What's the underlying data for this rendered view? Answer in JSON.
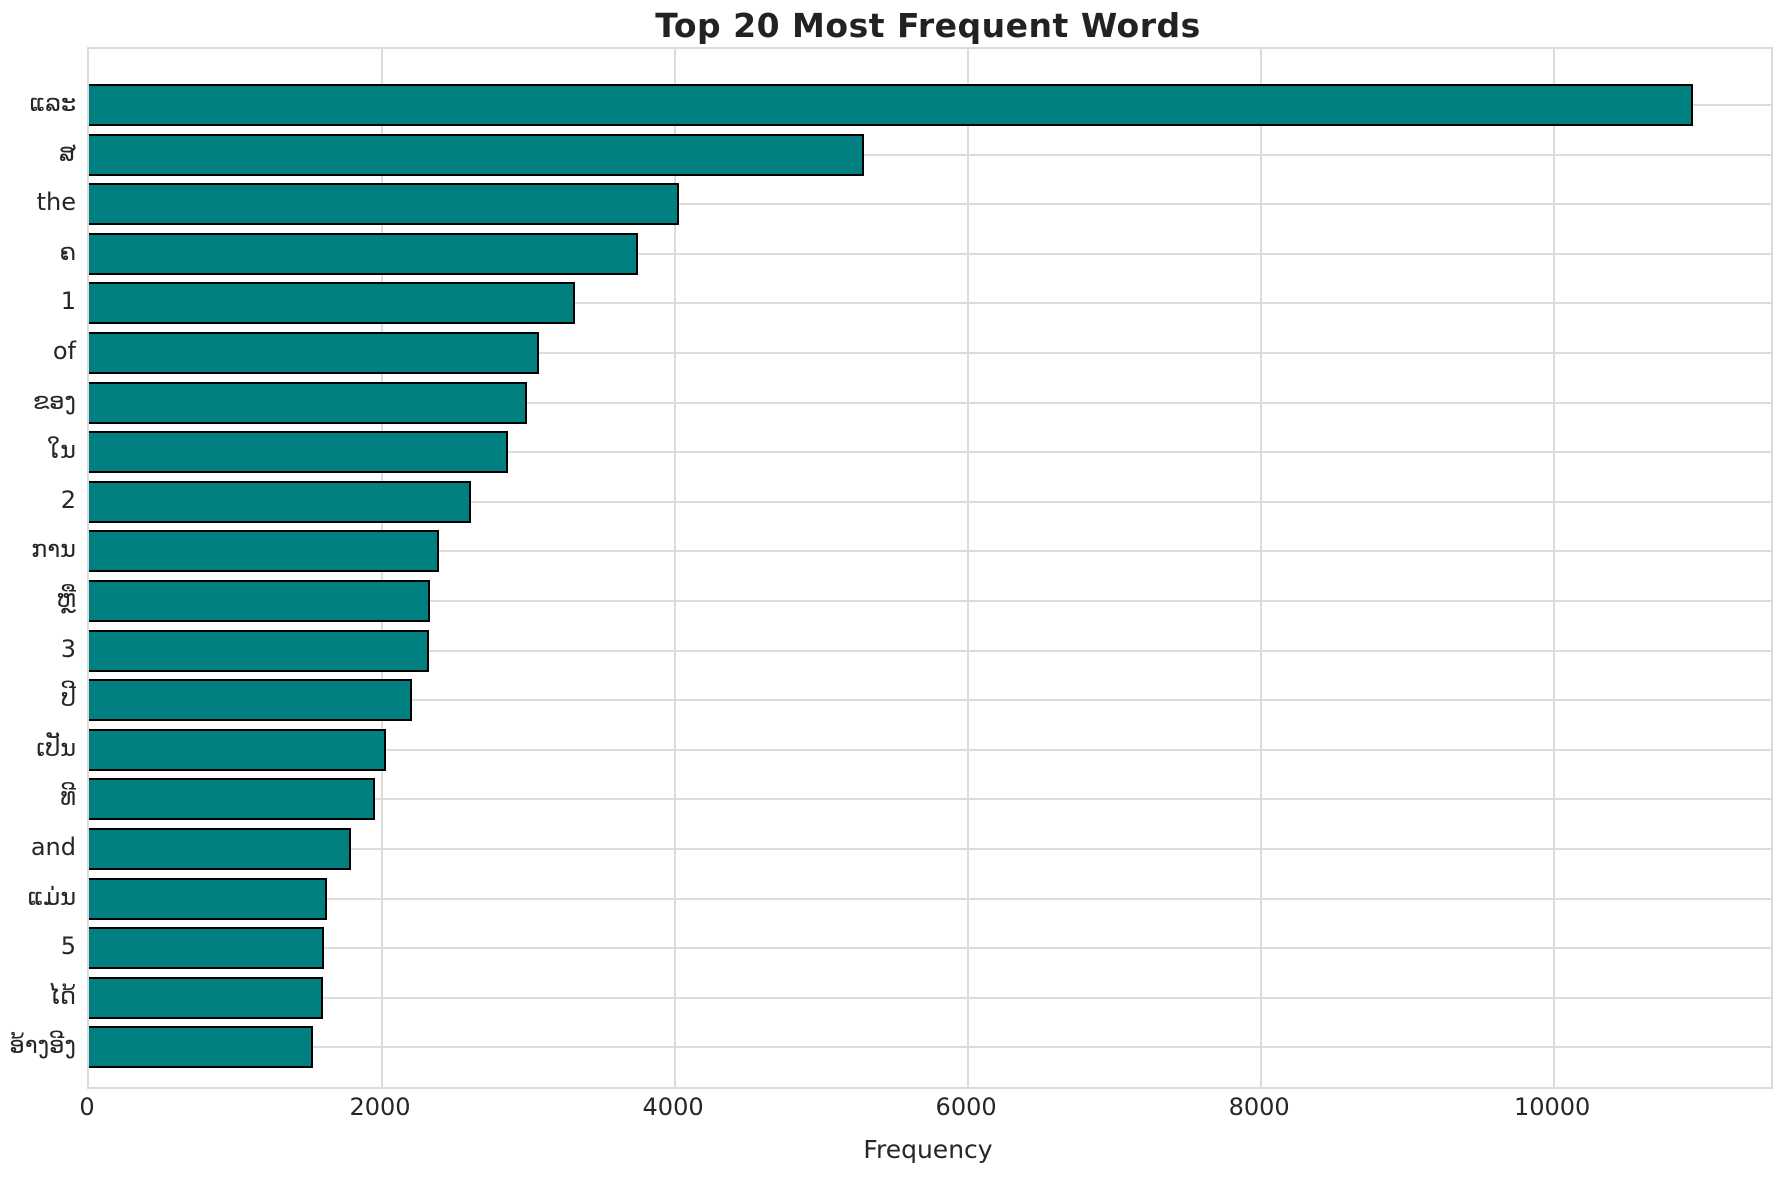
{
  "title": "Top 20 Most Frequent Words",
  "chart_data": {
    "type": "bar",
    "orientation": "horizontal",
    "title": "Top 20 Most Frequent Words",
    "xlabel": "Frequency",
    "ylabel": "",
    "categories": [
      "ແລະ",
      "ສ",
      "the",
      "ຄ",
      "1",
      "of",
      "ຂອງ",
      "ໃນ",
      "2",
      "ການ",
      "ຫຼື",
      "3",
      "ປີ",
      "ເປັນ",
      "ທີ",
      "and",
      "ແມ່ນ",
      "5",
      "ໄດ້",
      "ອ້າງອີງ"
    ],
    "values": [
      10950,
      5290,
      4030,
      3745,
      3315,
      3070,
      2990,
      2860,
      2610,
      2390,
      2330,
      2320,
      2205,
      2030,
      1950,
      1785,
      1625,
      1605,
      1600,
      1530
    ],
    "xlim": [
      0,
      11480
    ],
    "xticks": [
      0,
      2000,
      4000,
      6000,
      8000,
      10000
    ],
    "grid": true,
    "legend": "none",
    "bar_color": "#008080",
    "bar_edge_color": "#000000",
    "grid_color": "#dcdcdc",
    "background_color": "#ffffff",
    "text_color": "#262626"
  }
}
